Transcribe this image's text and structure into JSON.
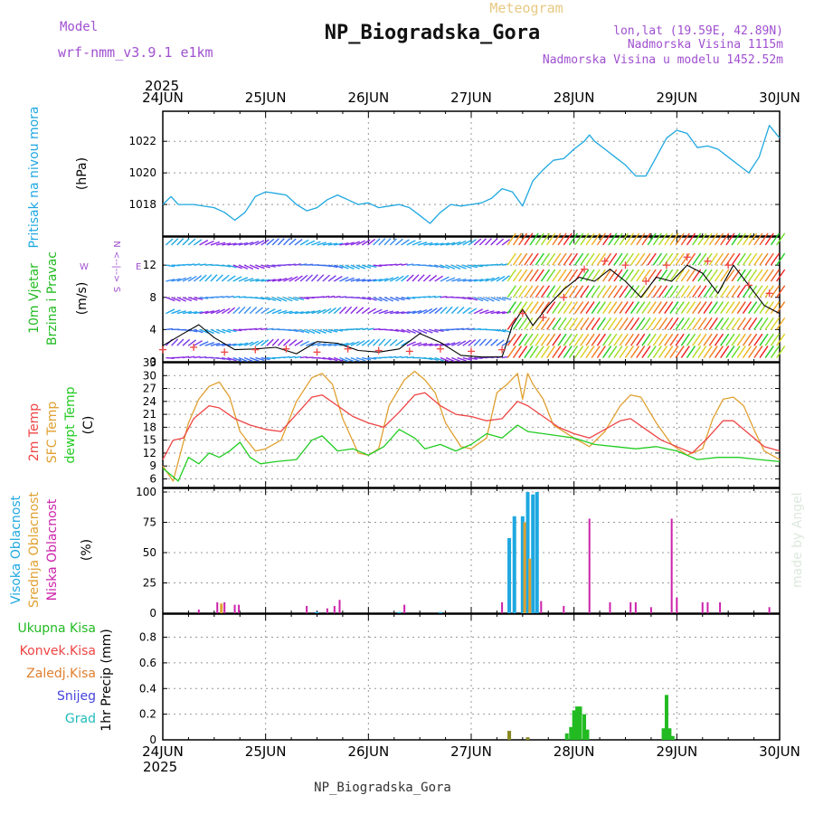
{
  "header": {
    "model_label": "Model",
    "model_name": "wrf-nmm_v3.9.1 e1km",
    "title": "NP_Biogradska_Gora",
    "subtitle": "Meteogram",
    "lonlat": "lon,lat (19.59E, 42.89N)",
    "altitude": "Nadmorska Visina 1115m",
    "model_altitude": "Nadmorska Visina u modelu 1452.52m",
    "footer_title": "NP_Biogradska_Gora",
    "watermark": "made by Angel",
    "year_top": "2025",
    "year_bottom": "2025"
  },
  "colors": {
    "pressure": "#1fa8e0",
    "wind_text": "#22bb22",
    "wind_units": "#000000",
    "compass": "#a050d0",
    "t2m": "#ee4444",
    "sfc": "#e0a030",
    "dewpt": "#22cc22",
    "cloud_high": "#1fa8e0",
    "cloud_mid": "#e0a030",
    "cloud_low": "#cc22aa",
    "precip_total": "#22bb22",
    "precip_conv": "#ee4444",
    "precip_frz": "#e08030",
    "precip_snow": "#4444dd",
    "precip_hail": "#22bbbb",
    "title_purple": "#a050d0",
    "title_gold": "#e8c880"
  },
  "chart_data": [
    {
      "type": "line",
      "panel": "pressure",
      "ylabel": "Pritisak na nivou mora",
      "units": "(hPa)",
      "xticks": [
        "24JUN",
        "25JUN",
        "26JUN",
        "27JUN",
        "28JUN",
        "29JUN",
        "30JUN"
      ],
      "ylim": [
        1016,
        1023.9
      ],
      "yticks": [
        1018,
        1020,
        1022
      ],
      "grid": true,
      "series": [
        {
          "name": "Pritisak na nivou mora",
          "x": [
            0,
            0.08,
            0.15,
            0.3,
            0.5,
            0.6,
            0.7,
            0.8,
            0.9,
            1.0,
            1.1,
            1.2,
            1.3,
            1.4,
            1.5,
            1.6,
            1.7,
            1.8,
            1.9,
            2.0,
            2.1,
            2.2,
            2.3,
            2.4,
            2.5,
            2.6,
            2.7,
            2.8,
            2.9,
            3.0,
            3.1,
            3.2,
            3.3,
            3.4,
            3.5,
            3.6,
            3.7,
            3.8,
            3.9,
            4.0,
            4.1,
            4.15,
            4.2,
            4.3,
            4.4,
            4.5,
            4.6,
            4.7,
            4.8,
            4.9,
            5.0,
            5.1,
            5.2,
            5.3,
            5.4,
            5.5,
            5.6,
            5.7,
            5.8,
            5.9,
            6.0
          ],
          "values": [
            1018.0,
            1018.5,
            1018.0,
            1018.0,
            1017.8,
            1017.5,
            1017.0,
            1017.5,
            1018.5,
            1018.8,
            1018.7,
            1018.6,
            1018.0,
            1017.6,
            1017.8,
            1018.3,
            1018.6,
            1018.3,
            1018.0,
            1018.1,
            1017.8,
            1017.9,
            1018.0,
            1017.8,
            1017.3,
            1016.8,
            1017.5,
            1018.0,
            1017.9,
            1018.0,
            1018.1,
            1018.4,
            1019.0,
            1018.8,
            1017.9,
            1019.5,
            1020.2,
            1020.8,
            1020.9,
            1021.5,
            1022.0,
            1022.4,
            1022.0,
            1021.5,
            1021.0,
            1020.5,
            1019.8,
            1019.8,
            1021.0,
            1022.2,
            1022.7,
            1022.5,
            1021.6,
            1021.7,
            1021.5,
            1021.0,
            1020.5,
            1020.0,
            1021.0,
            1023.0,
            1022.2
          ]
        }
      ]
    },
    {
      "type": "line",
      "panel": "wind",
      "ylabel": "10m Vjetar",
      "ylabel2": "Brzina i Pravac",
      "units": "(m/s)",
      "compass": [
        "N",
        "S",
        "W",
        "E"
      ],
      "compass_mid": "<--|-->",
      "ylim": [
        0,
        15.5
      ],
      "yticks": [
        0,
        4,
        8,
        12
      ],
      "grid": true,
      "series": [
        {
          "name": "wind speed",
          "x": [
            0,
            0.2,
            0.35,
            0.5,
            0.7,
            0.9,
            1.1,
            1.3,
            1.5,
            1.7,
            1.9,
            2.1,
            2.3,
            2.5,
            2.7,
            2.9,
            3.1,
            3.3,
            3.4,
            3.5,
            3.6,
            3.75,
            3.9,
            4.05,
            4.2,
            4.35,
            4.5,
            4.65,
            4.8,
            4.95,
            5.1,
            5.25,
            5.4,
            5.55,
            5.7,
            5.85,
            6.0
          ],
          "values": [
            2.0,
            3.5,
            4.6,
            3.0,
            1.5,
            1.6,
            1.8,
            1.0,
            2.5,
            2.3,
            1.4,
            1.2,
            1.6,
            3.5,
            2.4,
            0.8,
            0.6,
            0.6,
            4.5,
            6.5,
            4.5,
            7.0,
            9.0,
            10.5,
            10.0,
            11.5,
            10.0,
            8.0,
            10.5,
            10.0,
            12.0,
            11.0,
            8.5,
            12.0,
            9.5,
            7.0,
            6.0
          ]
        },
        {
          "name": "gust",
          "x": [
            0,
            0.3,
            0.6,
            0.9,
            1.2,
            1.5,
            1.8,
            2.1,
            2.4,
            2.7,
            3.0,
            3.3,
            3.5,
            3.7,
            3.9,
            4.1,
            4.3,
            4.5,
            4.7,
            4.9,
            5.1,
            5.3,
            5.5,
            5.7,
            5.9
          ],
          "values": [
            1.5,
            1.8,
            1.2,
            1.5,
            1.6,
            1.2,
            1.6,
            1.4,
            1.3,
            1.6,
            1.3,
            1.5,
            6.0,
            5.5,
            8.0,
            11.5,
            12.5,
            12.0,
            10.0,
            12.0,
            13.0,
            12.5,
            12.0,
            9.5,
            8.5
          ]
        }
      ]
    },
    {
      "type": "line",
      "panel": "temperature",
      "ylabel": "2m Temp",
      "ylabel2": "SFC Temp",
      "ylabel3": "dewpt Temp",
      "units": "(C)",
      "ylim": [
        4,
        33
      ],
      "yticks": [
        6,
        9,
        12,
        15,
        18,
        21,
        24,
        27,
        30,
        33
      ],
      "grid": true,
      "series": [
        {
          "name": "2m Temp",
          "x": [
            0,
            0.1,
            0.2,
            0.3,
            0.45,
            0.55,
            0.7,
            0.85,
            1.0,
            1.15,
            1.3,
            1.45,
            1.55,
            1.7,
            1.85,
            2.0,
            2.15,
            2.3,
            2.45,
            2.55,
            2.7,
            2.85,
            3.0,
            3.15,
            3.3,
            3.45,
            3.55,
            3.7,
            3.85,
            4.0,
            4.15,
            4.3,
            4.45,
            4.55,
            4.7,
            4.85,
            5.0,
            5.15,
            5.3,
            5.45,
            5.55,
            5.7,
            5.85,
            6.0
          ],
          "values": [
            10.5,
            15.0,
            15.5,
            20.0,
            23.0,
            22.5,
            20.0,
            18.5,
            17.5,
            17.0,
            21.0,
            25.0,
            25.5,
            23.0,
            20.5,
            19.0,
            18.0,
            21.5,
            25.5,
            26.0,
            23.0,
            21.0,
            20.5,
            19.5,
            20.0,
            24.0,
            23.0,
            20.5,
            18.0,
            16.5,
            15.5,
            17.5,
            19.5,
            20.0,
            17.5,
            15.0,
            13.5,
            12.0,
            15.5,
            19.5,
            19.5,
            16.5,
            13.5,
            12.5
          ]
        },
        {
          "name": "SFC Temp",
          "x": [
            0,
            0.1,
            0.15,
            0.25,
            0.35,
            0.45,
            0.55,
            0.65,
            0.75,
            0.9,
            1.0,
            1.15,
            1.3,
            1.45,
            1.55,
            1.65,
            1.75,
            1.9,
            2.0,
            2.1,
            2.2,
            2.35,
            2.45,
            2.55,
            2.65,
            2.75,
            2.9,
            3.0,
            3.15,
            3.25,
            3.35,
            3.45,
            3.5,
            3.55,
            3.6,
            3.7,
            3.8,
            4.0,
            4.15,
            4.3,
            4.45,
            4.55,
            4.65,
            4.8,
            4.95,
            5.1,
            5.25,
            5.35,
            5.45,
            5.55,
            5.65,
            5.75,
            5.85,
            6.0
          ],
          "values": [
            9.0,
            5.5,
            10.0,
            19.0,
            24.5,
            27.5,
            28.5,
            25.0,
            17.0,
            12.5,
            13.0,
            15.0,
            24.0,
            29.5,
            30.5,
            28.0,
            20.0,
            12.0,
            11.5,
            13.0,
            23.0,
            29.0,
            31.0,
            29.0,
            26.0,
            19.0,
            13.5,
            13.0,
            15.5,
            26.0,
            28.0,
            30.5,
            24.5,
            30.5,
            28.0,
            24.5,
            18.5,
            15.5,
            13.5,
            17.0,
            23.0,
            25.5,
            25.0,
            19.0,
            14.0,
            11.5,
            13.0,
            20.0,
            24.5,
            25.0,
            23.0,
            17.5,
            12.5,
            10.5
          ]
        },
        {
          "name": "dewpt Temp",
          "x": [
            0,
            0.1,
            0.15,
            0.25,
            0.35,
            0.45,
            0.55,
            0.65,
            0.75,
            0.85,
            0.95,
            1.1,
            1.3,
            1.45,
            1.55,
            1.7,
            1.85,
            2.0,
            2.15,
            2.3,
            2.45,
            2.55,
            2.7,
            2.85,
            3.0,
            3.15,
            3.3,
            3.45,
            3.55,
            3.7,
            3.85,
            4.0,
            4.2,
            4.4,
            4.6,
            4.8,
            5.0,
            5.2,
            5.4,
            5.6,
            5.8,
            6.0
          ],
          "values": [
            8.5,
            6.5,
            5.5,
            11.0,
            9.5,
            12.0,
            11.0,
            12.5,
            14.5,
            11.0,
            9.5,
            10.0,
            10.5,
            15.0,
            16.0,
            12.5,
            13.0,
            11.5,
            13.5,
            17.5,
            15.5,
            13.0,
            14.0,
            12.5,
            14.0,
            16.5,
            15.5,
            18.5,
            17.0,
            16.5,
            16.0,
            15.5,
            14.0,
            13.5,
            13.0,
            13.5,
            12.5,
            10.5,
            11.0,
            11.0,
            10.5,
            10.0
          ]
        }
      ]
    },
    {
      "type": "bar",
      "panel": "cloud",
      "ylabel": "Visoka Oblacnost",
      "ylabel2": "Srednja Oblacnost",
      "ylabel3": "Niska Oblacnost",
      "units": "(%)",
      "ylim": [
        0,
        103
      ],
      "yticks": [
        0,
        25,
        50,
        75,
        100
      ],
      "grid": true,
      "series": [
        {
          "name": "Visoka Oblacnost",
          "x": [
            1.5,
            2.3,
            2.7,
            3.37,
            3.42,
            3.5,
            3.55,
            3.6,
            3.64
          ],
          "values": [
            1,
            1,
            1,
            62,
            80,
            80,
            100,
            98,
            100
          ]
        },
        {
          "name": "Srednja Oblacnost",
          "x": [
            0.57,
            3.52,
            3.57
          ],
          "values": [
            8,
            75,
            45
          ]
        },
        {
          "name": "Niska Oblacnost",
          "x": [
            0.35,
            0.53,
            0.6,
            0.7,
            0.74,
            1.4,
            1.6,
            1.67,
            1.72,
            2.35,
            3.3,
            3.68,
            3.9,
            4.15,
            4.35,
            4.55,
            4.6,
            4.75,
            4.95,
            5.0,
            5.25,
            5.3,
            5.42,
            5.9
          ],
          "values": [
            3,
            9,
            9,
            7,
            7,
            6,
            4,
            6,
            11,
            7,
            9,
            10,
            6,
            78,
            9,
            9,
            9,
            5,
            78,
            13,
            9,
            9,
            9,
            5
          ]
        }
      ]
    },
    {
      "type": "bar",
      "panel": "precip",
      "ylabel": "1hr Precip (mm)",
      "legend": [
        "Ukupna Kisa",
        "Konvek.Kisa",
        "Zaledj.Kisa",
        "Snijeg",
        "Grad"
      ],
      "ylim": [
        0,
        0.98
      ],
      "yticks": [
        0,
        0.2,
        0.4,
        0.6,
        0.8
      ],
      "grid": true,
      "xticks": [
        "24JUN",
        "25JUN",
        "26JUN",
        "27JUN",
        "28JUN",
        "29JUN",
        "30JUN"
      ],
      "series": [
        {
          "name": "Ukupna Kisa",
          "x": [
            3.37,
            3.55,
            3.93,
            3.97,
            4.0,
            4.03,
            4.06,
            4.1,
            4.13,
            4.87,
            4.9,
            4.93,
            4.96
          ],
          "values": [
            0.07,
            0.02,
            0.05,
            0.1,
            0.23,
            0.26,
            0.26,
            0.2,
            0.08,
            0.09,
            0.35,
            0.09,
            0.03
          ]
        },
        {
          "name": "Konvek.Kisa",
          "x": [],
          "values": []
        },
        {
          "name": "Zaledj.Kisa",
          "x": [],
          "values": []
        },
        {
          "name": "Snijeg",
          "x": [],
          "values": []
        },
        {
          "name": "Grad",
          "x": [],
          "values": []
        }
      ]
    }
  ]
}
